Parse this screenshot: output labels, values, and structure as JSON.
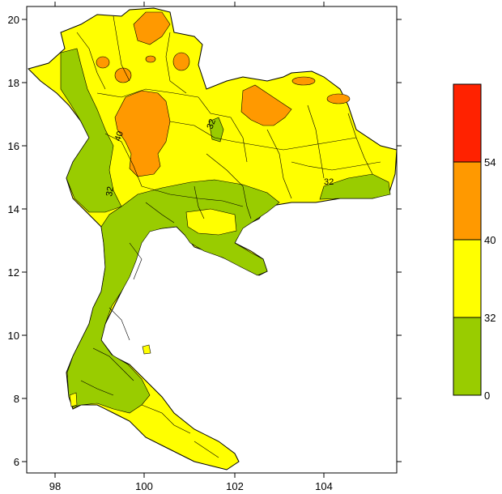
{
  "chart_data": {
    "type": "heatmap",
    "title": "",
    "xlabel": "",
    "ylabel": "",
    "xlim": [
      97.4,
      105.6
    ],
    "ylim": [
      5.7,
      20.4
    ],
    "x_ticks": [
      "98",
      "100",
      "102",
      "104"
    ],
    "y_ticks": [
      "6",
      "8",
      "10",
      "12",
      "14",
      "16",
      "18",
      "20"
    ],
    "contour_labels": [
      "40",
      "32",
      "32",
      "32"
    ],
    "legend": {
      "position": "right",
      "bins": [
        {
          "from": 0,
          "to": 32,
          "color": "#99cc00"
        },
        {
          "from": 32,
          "to": 40,
          "color": "#ffff00"
        },
        {
          "from": 40,
          "to": 54,
          "color": "#ff9900"
        },
        {
          "from": 54,
          "to": null,
          "color": "#ff2200"
        }
      ],
      "labels": [
        "0",
        "32",
        "40",
        "54"
      ]
    }
  },
  "colors": {
    "low": "#99cc00",
    "mid": "#ffff00",
    "high": "#ff9900",
    "top": "#ff2200",
    "border": "#000000"
  }
}
